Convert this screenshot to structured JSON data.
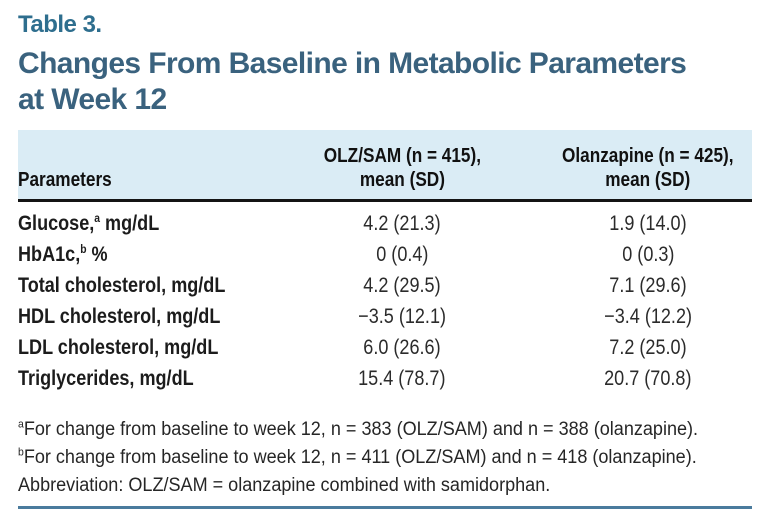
{
  "eyebrow": "Table 3.",
  "title_line1": "Changes From Baseline in Metabolic Parameters",
  "title_line2": "at Week 12",
  "table": {
    "header": {
      "col1": "Parameters",
      "col2_line1": "OLZ/SAM (n = 415),",
      "col2_line2": "mean (SD)",
      "col3_line1": "Olanzapine (n = 425),",
      "col3_line2": "mean (SD)"
    },
    "rows": [
      {
        "label": "Glucose,",
        "sup": "a",
        "label_rest": " mg/dL",
        "olz_sam": "4.2 (21.3)",
        "olanzapine": "1.9 (14.0)"
      },
      {
        "label": "HbA1c,",
        "sup": "b",
        "label_rest": " %",
        "olz_sam": "0 (0.4)",
        "olanzapine": "0 (0.3)"
      },
      {
        "label": "Total cholesterol, mg/dL",
        "sup": "",
        "label_rest": "",
        "olz_sam": "4.2 (29.5)",
        "olanzapine": "7.1 (29.6)"
      },
      {
        "label": "HDL cholesterol, mg/dL",
        "sup": "",
        "label_rest": "",
        "olz_sam": "−3.5 (12.1)",
        "olanzapine": "−3.4 (12.2)"
      },
      {
        "label": "LDL cholesterol, mg/dL",
        "sup": "",
        "label_rest": "",
        "olz_sam": "6.0 (26.6)",
        "olanzapine": "7.2 (25.0)"
      },
      {
        "label": "Triglycerides, mg/dL",
        "sup": "",
        "label_rest": "",
        "olz_sam": "15.4 (78.7)",
        "olanzapine": "20.7 (70.8)"
      }
    ]
  },
  "footnotes": [
    {
      "sup": "a",
      "text": "For change from baseline to week 12, n = 383 (OLZ/SAM) and n = 388 (olanzapine)."
    },
    {
      "sup": "b",
      "text": "For change from baseline to week 12, n = 411 (OLZ/SAM) and n = 418 (olanzapine)."
    },
    {
      "sup": "",
      "text": "Abbreviation: OLZ/SAM = olanzapine combined with samidorphan."
    }
  ],
  "colors": {
    "eyebrow_text": "#2e6e8e",
    "title_text": "#3a627e",
    "header_background": "#daecf5",
    "header_rule": "#141414",
    "bottom_rule": "#4a7b9d"
  }
}
